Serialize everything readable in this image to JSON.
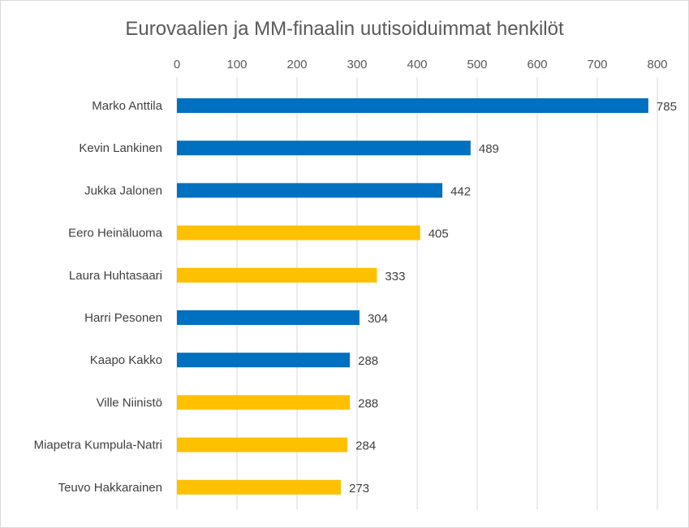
{
  "chart_data": {
    "type": "bar",
    "orientation": "horizontal",
    "title": "Eurovaalien ja MM-finaalin uutisoiduimmat henkilöt",
    "xlabel": "",
    "ylabel": "",
    "xlim": [
      0,
      800
    ],
    "x_ticks": [
      0,
      100,
      200,
      300,
      400,
      500,
      600,
      700,
      800
    ],
    "x_axis_position": "top",
    "grid": true,
    "legend": "none",
    "categories": [
      "Marko Anttila",
      "Kevin Lankinen",
      "Jukka Jalonen",
      "Eero Heinäluoma",
      "Laura Huhtasaari",
      "Harri Pesonen",
      "Kaapo Kakko",
      "Ville Niinistö",
      "Miapetra Kumpula-Natri",
      "Teuvo Hakkarainen"
    ],
    "values": [
      785,
      489,
      442,
      405,
      333,
      304,
      288,
      288,
      284,
      273
    ],
    "bar_colors": [
      "#0070C0",
      "#0070C0",
      "#0070C0",
      "#FFC000",
      "#FFC000",
      "#0070C0",
      "#0070C0",
      "#FFC000",
      "#FFC000",
      "#FFC000"
    ]
  }
}
